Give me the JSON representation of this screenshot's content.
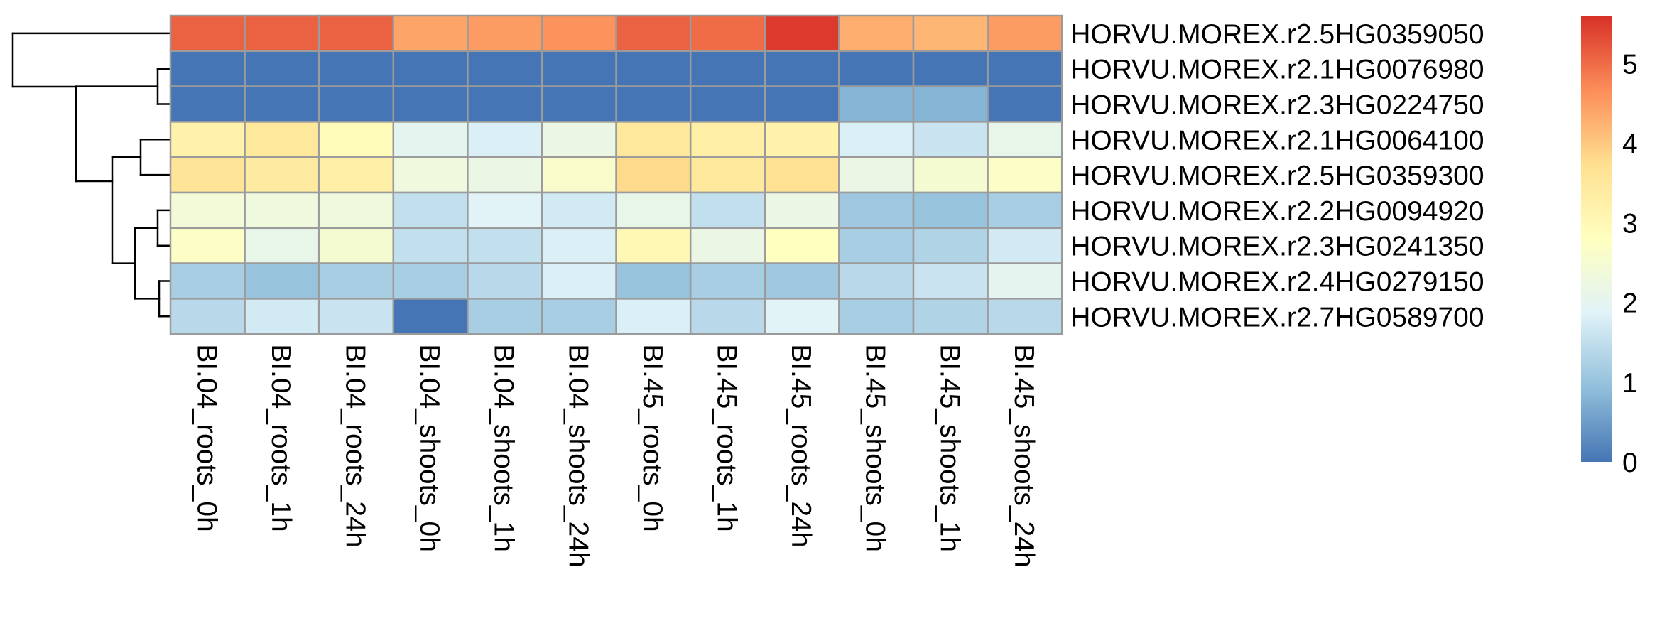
{
  "chart_data": {
    "type": "heatmap",
    "title": "",
    "rows": [
      "HORVU.MOREX.r2.5HG0359050",
      "HORVU.MOREX.r2.1HG0076980",
      "HORVU.MOREX.r2.3HG0224750",
      "HORVU.MOREX.r2.1HG0064100",
      "HORVU.MOREX.r2.5HG0359300",
      "HORVU.MOREX.r2.2HG0094920",
      "HORVU.MOREX.r2.3HG0241350",
      "HORVU.MOREX.r2.4HG0279150",
      "HORVU.MOREX.r2.7HG0589700"
    ],
    "columns": [
      "BI.04_roots_0h",
      "BI.04_roots_1h",
      "BI.04_roots_24h",
      "BI.04_shoots_0h",
      "BI.04_shoots_1h",
      "BI.04_shoots_24h",
      "BI.45_roots_0h",
      "BI.45_roots_1h",
      "BI.45_roots_24h",
      "BI.45_shoots_0h",
      "BI.45_shoots_1h",
      "BI.45_shoots_24h"
    ],
    "values": [
      [
        5.1,
        5.1,
        5.1,
        4.4,
        4.5,
        4.6,
        5.1,
        5.0,
        5.5,
        4.3,
        4.2,
        4.5
      ],
      [
        0.0,
        0.0,
        0.0,
        0.0,
        0.0,
        0.0,
        0.0,
        0.0,
        0.0,
        0.0,
        0.0,
        0.0
      ],
      [
        0.0,
        0.0,
        0.0,
        0.0,
        0.0,
        0.0,
        0.0,
        0.0,
        0.0,
        0.8,
        0.8,
        0.0
      ],
      [
        3.2,
        3.5,
        2.9,
        2.0,
        1.8,
        2.2,
        3.5,
        3.3,
        3.2,
        1.8,
        1.6,
        2.1
      ],
      [
        3.6,
        3.4,
        3.3,
        2.3,
        2.2,
        2.6,
        3.8,
        3.5,
        3.7,
        2.2,
        2.5,
        2.7
      ],
      [
        2.4,
        2.3,
        2.3,
        1.5,
        1.9,
        1.7,
        2.1,
        1.5,
        2.2,
        1.1,
        1.0,
        1.2
      ],
      [
        2.7,
        2.1,
        2.5,
        1.5,
        1.5,
        1.8,
        3.0,
        2.2,
        2.8,
        1.2,
        1.3,
        1.7
      ],
      [
        1.2,
        1.0,
        1.2,
        1.2,
        1.4,
        1.8,
        1.0,
        1.2,
        1.1,
        1.4,
        1.6,
        2.0
      ],
      [
        1.4,
        1.7,
        1.6,
        0.0,
        1.2,
        1.2,
        1.8,
        1.4,
        1.9,
        1.2,
        1.3,
        1.4
      ]
    ],
    "colorbar": {
      "min": 0,
      "max": 5.6,
      "ticks": [
        0,
        1,
        2,
        3,
        4,
        5
      ],
      "tick_labels": [
        "0",
        "1",
        "2",
        "3",
        "4",
        "5"
      ],
      "colors": [
        "#4575B4",
        "#91BFDB",
        "#E0F3F8",
        "#FFFFBF",
        "#FEE090",
        "#FC8D59",
        "#D73027"
      ]
    },
    "cell_border_color": "#9B9B9B",
    "row_dendrogram": true,
    "legend_position": "right"
  }
}
